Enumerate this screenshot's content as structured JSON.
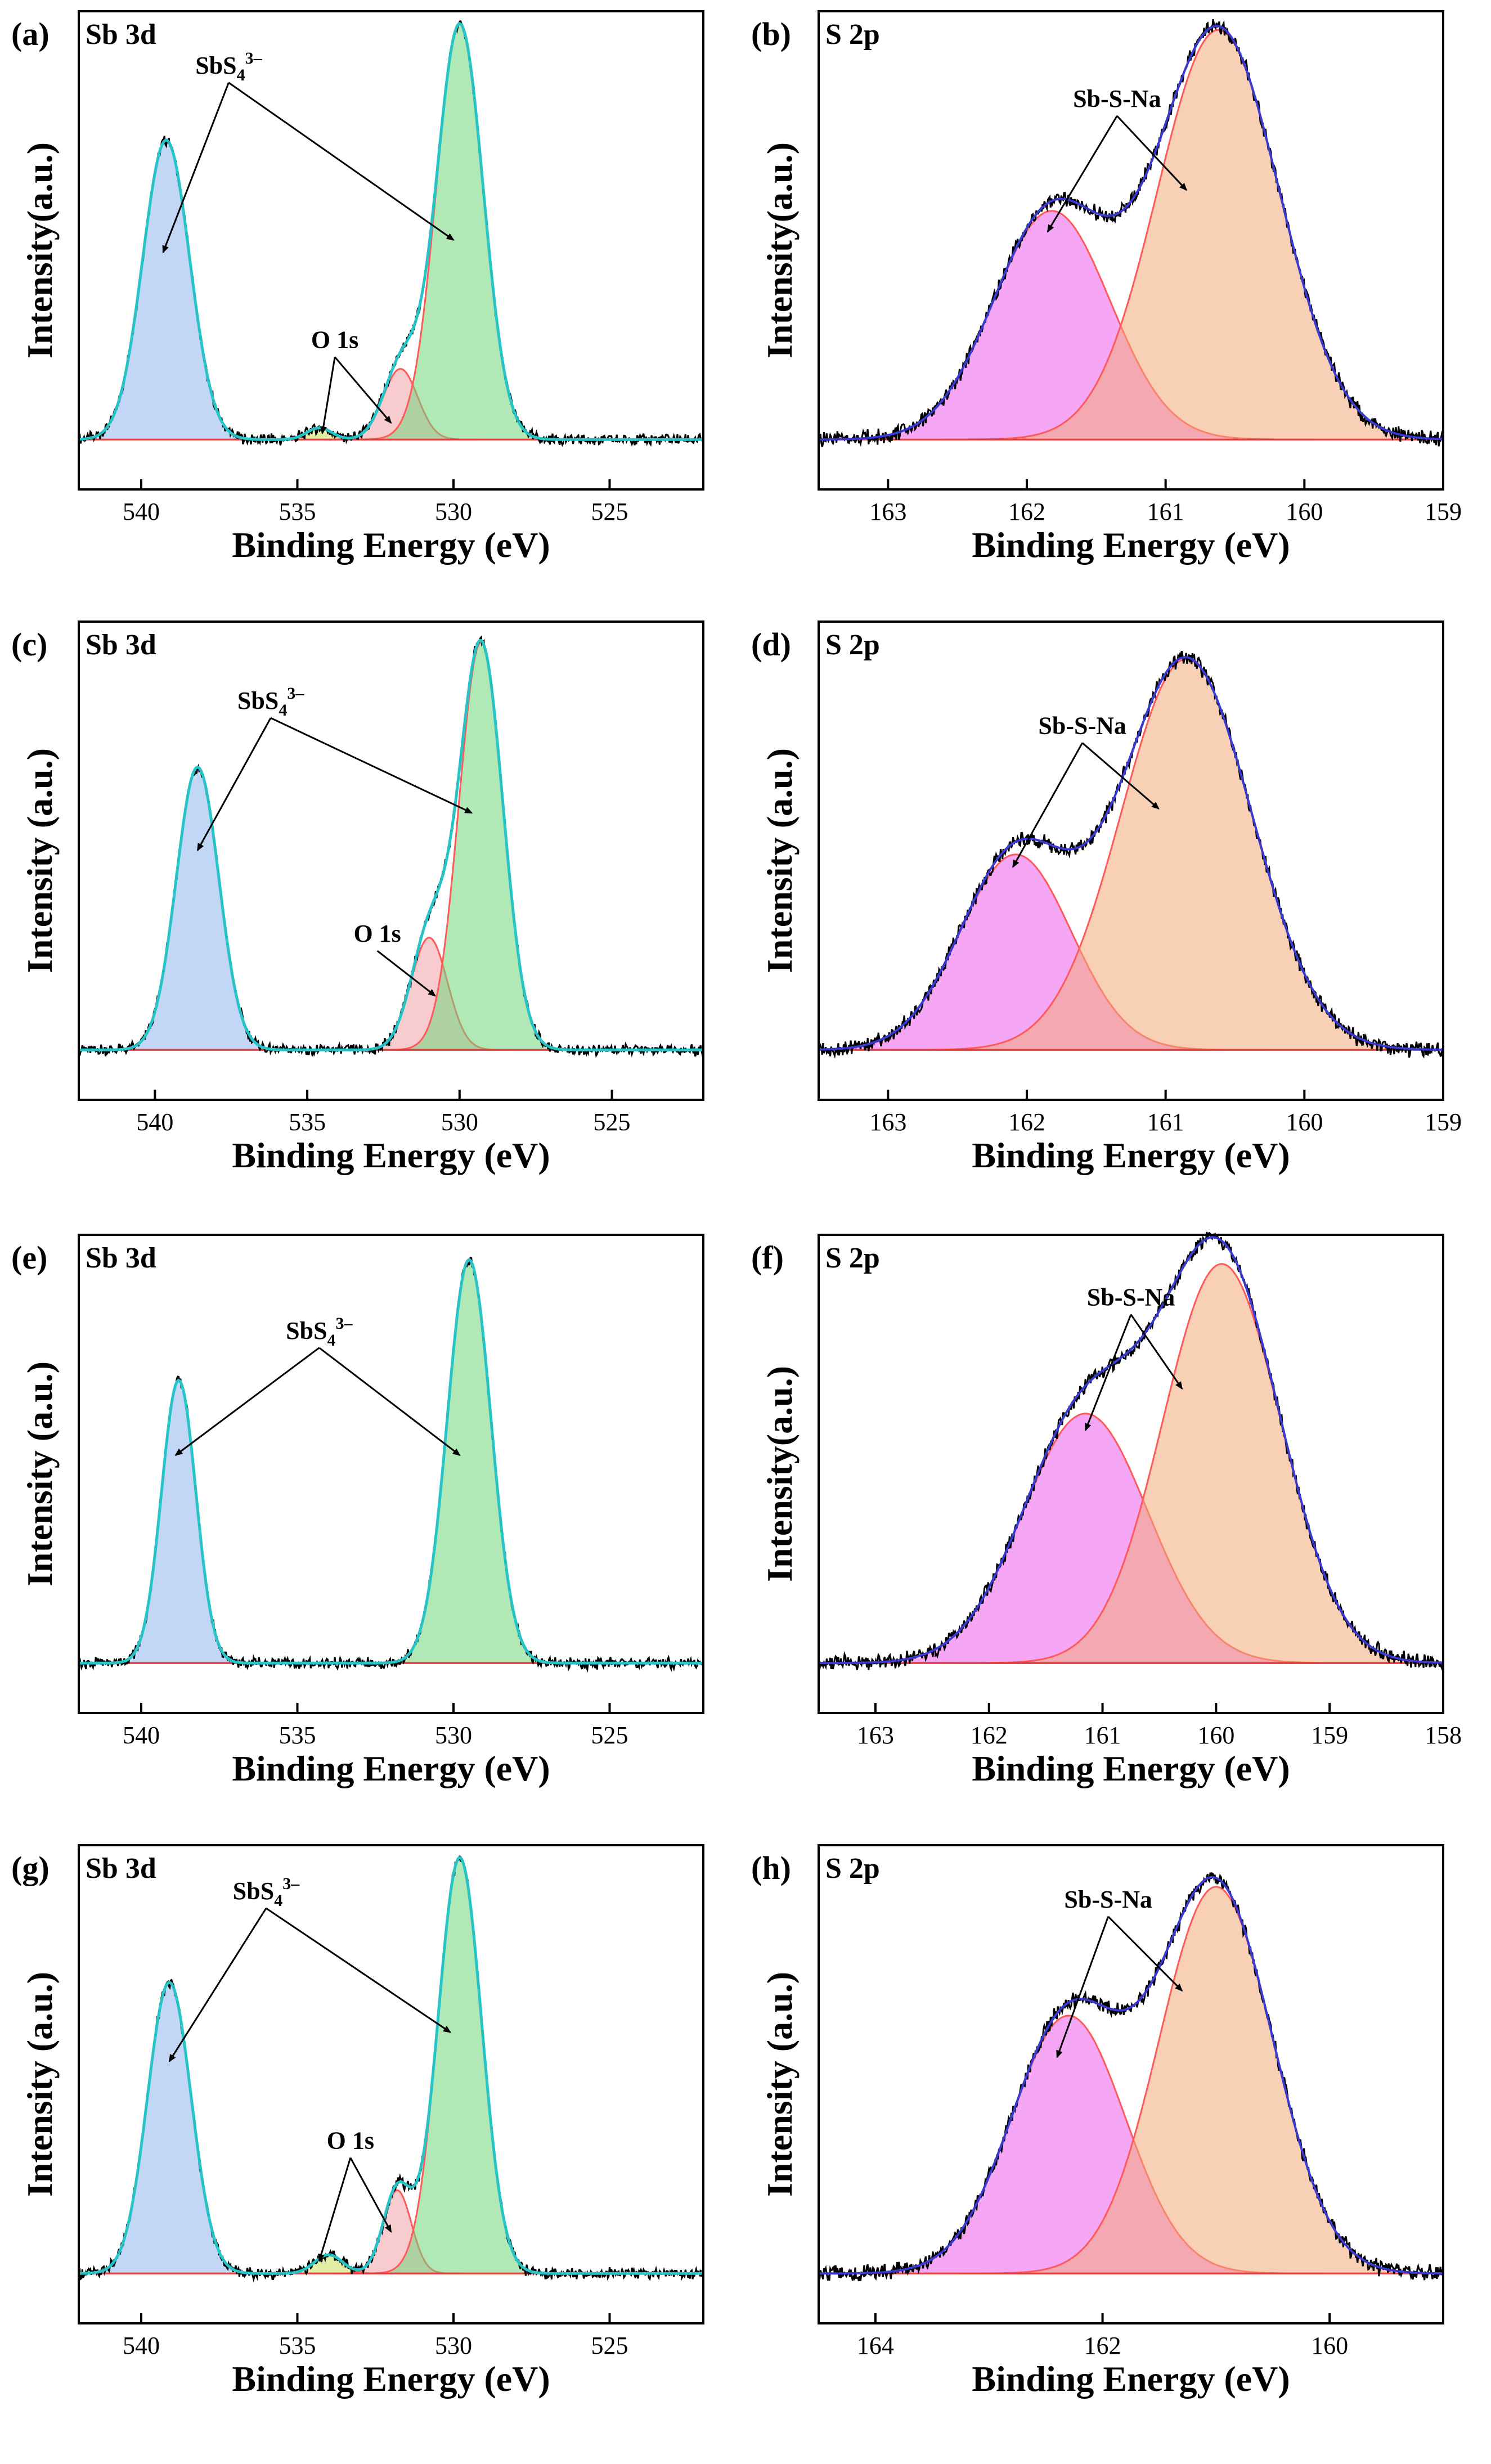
{
  "figure": {
    "description_free": true
  },
  "chart_data": [
    {
      "type": "line",
      "panel": "(a)",
      "core_level": "Sb 3d",
      "xlabel": "Binding Energy (eV)",
      "ylabel": "Intensity(a.u.)",
      "xlim": [
        542,
        522
      ],
      "ylim": [
        -0.12,
        1.03
      ],
      "xticks": [
        540,
        535,
        530,
        525
      ],
      "baseline": 0,
      "peaks": [
        {
          "name": "SbS4 3- (3d3/2)",
          "center": 539.2,
          "sigma": 0.75,
          "height": 0.72,
          "color": "#8fb4ee"
        },
        {
          "name": "O 1s (satellite)",
          "center": 534.3,
          "sigma": 0.4,
          "height": 0.028,
          "color": "#c8e05a"
        },
        {
          "name": "O 1s",
          "center": 531.7,
          "sigma": 0.55,
          "height": 0.17,
          "color": "#f2a3a8"
        },
        {
          "name": "SbS4 3- (3d5/2)",
          "center": 529.8,
          "sigma": 0.75,
          "height": 1.0,
          "color": "#6fd67a"
        }
      ],
      "annotations": [
        {
          "text": "SbS",
          "sub": "4",
          "sup": "3–",
          "x": 537.2,
          "y": 0.88,
          "arrows": [
            [
              539.3,
              0.45
            ],
            [
              530.0,
              0.48
            ]
          ]
        },
        {
          "text": "O 1s",
          "x": 533.8,
          "y": 0.22,
          "arrows": [
            [
              534.2,
              0.015
            ],
            [
              532.0,
              0.04
            ]
          ]
        }
      ]
    },
    {
      "type": "line",
      "panel": "(b)",
      "core_level": "S 2p",
      "xlabel": "Binding Energy (eV)",
      "ylabel": "Intensity(a.u.)",
      "xlim": [
        163.5,
        159
      ],
      "ylim": [
        -0.12,
        1.03
      ],
      "xticks": [
        163,
        162,
        161,
        160,
        159
      ],
      "baseline": 0,
      "peaks": [
        {
          "name": "Sb-S-Na (2p1/2)",
          "center": 161.82,
          "sigma": 0.42,
          "height": 0.55,
          "color": "#ec5cec"
        },
        {
          "name": "Sb-S-Na (2p3/2)",
          "center": 160.62,
          "sigma": 0.44,
          "height": 0.985,
          "color": "#f2aa78"
        }
      ],
      "annotations": [
        {
          "text": "Sb-S-Na",
          "x": 161.35,
          "y": 0.8,
          "arrows": [
            [
              161.85,
              0.5
            ],
            [
              160.85,
              0.6
            ]
          ]
        }
      ]
    },
    {
      "type": "line",
      "panel": "(c)",
      "core_level": "Sb 3d",
      "xlabel": "Binding Energy (eV)",
      "ylabel": "Intensity (a.u.)",
      "xlim": [
        542.5,
        522
      ],
      "ylim": [
        -0.12,
        1.03
      ],
      "xticks": [
        540,
        535,
        530,
        525
      ],
      "baseline": 0,
      "peaks": [
        {
          "name": "SbS4 3- (3d3/2)",
          "center": 538.6,
          "sigma": 0.7,
          "height": 0.68,
          "color": "#8fb4ee"
        },
        {
          "name": "O 1s",
          "center": 531.0,
          "sigma": 0.6,
          "height": 0.27,
          "color": "#f2a3a8"
        },
        {
          "name": "SbS4 3- (3d5/2)",
          "center": 529.3,
          "sigma": 0.72,
          "height": 0.98,
          "color": "#6fd67a"
        }
      ],
      "annotations": [
        {
          "text": "SbS",
          "sub": "4",
          "sup": "3–",
          "x": 536.2,
          "y": 0.82,
          "arrows": [
            [
              538.6,
              0.48
            ],
            [
              529.6,
              0.57
            ]
          ]
        },
        {
          "text": "O 1s",
          "x": 532.7,
          "y": 0.26,
          "arrows": [
            [
              530.8,
              0.13
            ]
          ]
        }
      ]
    },
    {
      "type": "line",
      "panel": "(d)",
      "core_level": "S 2p",
      "xlabel": "Binding Energy (eV)",
      "ylabel": "Intensity (a.u.)",
      "xlim": [
        163.5,
        159
      ],
      "ylim": [
        -0.12,
        1.03
      ],
      "xticks": [
        163,
        162,
        161,
        160,
        159
      ],
      "baseline": 0,
      "peaks": [
        {
          "name": "Sb-S-Na (2p1/2)",
          "center": 162.08,
          "sigma": 0.4,
          "height": 0.47,
          "color": "#ec5cec"
        },
        {
          "name": "Sb-S-Na (2p3/2)",
          "center": 160.85,
          "sigma": 0.47,
          "height": 0.94,
          "color": "#f2aa78"
        }
      ],
      "annotations": [
        {
          "text": "Sb-S-Na",
          "x": 161.6,
          "y": 0.76,
          "arrows": [
            [
              162.1,
              0.44
            ],
            [
              161.05,
              0.58
            ]
          ]
        }
      ]
    },
    {
      "type": "line",
      "panel": "(e)",
      "core_level": "Sb 3d",
      "xlabel": "Binding Energy (eV)",
      "ylabel": "Intensity (a.u.)",
      "xlim": [
        542,
        522
      ],
      "ylim": [
        -0.12,
        1.03
      ],
      "xticks": [
        540,
        535,
        530,
        525
      ],
      "baseline": 0,
      "peaks": [
        {
          "name": "SbS4 3- (3d3/2)",
          "center": 538.8,
          "sigma": 0.55,
          "height": 0.68,
          "color": "#8fb4ee"
        },
        {
          "name": "SbS4 3- (3d5/2)",
          "center": 529.5,
          "sigma": 0.7,
          "height": 0.97,
          "color": "#6fd67a"
        }
      ],
      "annotations": [
        {
          "text": "SbS",
          "sub": "4",
          "sup": "3–",
          "x": 534.3,
          "y": 0.78,
          "arrows": [
            [
              538.9,
              0.5
            ],
            [
              529.8,
              0.5
            ]
          ]
        }
      ]
    },
    {
      "type": "line",
      "panel": "(f)",
      "core_level": "S 2p",
      "xlabel": "Binding Energy (eV)",
      "ylabel": "Intensity(a.u.)",
      "xlim": [
        163.5,
        158
      ],
      "ylim": [
        -0.12,
        1.03
      ],
      "xticks": [
        163,
        162,
        161,
        160,
        159,
        158
      ],
      "baseline": 0,
      "peaks": [
        {
          "name": "Sb-S-Na (2p1/2)",
          "center": 161.15,
          "sigma": 0.55,
          "height": 0.6,
          "color": "#ec5cec"
        },
        {
          "name": "Sb-S-Na (2p3/2)",
          "center": 159.95,
          "sigma": 0.52,
          "height": 0.96,
          "color": "#f2aa78"
        }
      ],
      "annotations": [
        {
          "text": "Sb-S-Na",
          "x": 160.75,
          "y": 0.86,
          "arrows": [
            [
              161.15,
              0.56
            ],
            [
              160.3,
              0.66
            ]
          ]
        }
      ]
    },
    {
      "type": "line",
      "panel": "(g)",
      "core_level": "Sb 3d",
      "xlabel": "Binding Energy (eV)",
      "ylabel": "Intensity (a.u.)",
      "xlim": [
        542,
        522
      ],
      "ylim": [
        -0.12,
        1.03
      ],
      "xticks": [
        540,
        535,
        530,
        525
      ],
      "baseline": 0,
      "peaks": [
        {
          "name": "SbS4 3- (3d3/2)",
          "center": 539.1,
          "sigma": 0.7,
          "height": 0.7,
          "color": "#8fb4ee"
        },
        {
          "name": "O 1s (satellite)",
          "center": 534.0,
          "sigma": 0.45,
          "height": 0.045,
          "color": "#c8e05a"
        },
        {
          "name": "O 1s",
          "center": 531.8,
          "sigma": 0.45,
          "height": 0.2,
          "color": "#f2a3a8"
        },
        {
          "name": "SbS4 3- (3d5/2)",
          "center": 529.8,
          "sigma": 0.7,
          "height": 1.0,
          "color": "#6fd67a"
        }
      ],
      "annotations": [
        {
          "text": "SbS",
          "sub": "4",
          "sup": "3–",
          "x": 536.0,
          "y": 0.9,
          "arrows": [
            [
              539.1,
              0.51
            ],
            [
              530.1,
              0.58
            ]
          ]
        },
        {
          "text": "O 1s",
          "x": 533.3,
          "y": 0.3,
          "arrows": [
            [
              534.3,
              0.03
            ],
            [
              532.0,
              0.1
            ]
          ]
        }
      ]
    },
    {
      "type": "line",
      "panel": "(h)",
      "core_level": "S 2p",
      "xlabel": "Binding Energy (eV)",
      "ylabel": "Intensity (a.u.)",
      "xlim": [
        164.5,
        159
      ],
      "ylim": [
        -0.12,
        1.03
      ],
      "xticks": [
        164,
        162,
        160
      ],
      "baseline": 0,
      "peaks": [
        {
          "name": "Sb-S-Na (2p1/2)",
          "center": 162.3,
          "sigma": 0.5,
          "height": 0.62,
          "color": "#ec5cec"
        },
        {
          "name": "Sb-S-Na (2p3/2)",
          "center": 161.0,
          "sigma": 0.5,
          "height": 0.93,
          "color": "#f2aa78"
        }
      ],
      "annotations": [
        {
          "text": "Sb-S-Na",
          "x": 161.95,
          "y": 0.88,
          "arrows": [
            [
              162.4,
              0.52
            ],
            [
              161.3,
              0.68
            ]
          ]
        }
      ]
    }
  ]
}
